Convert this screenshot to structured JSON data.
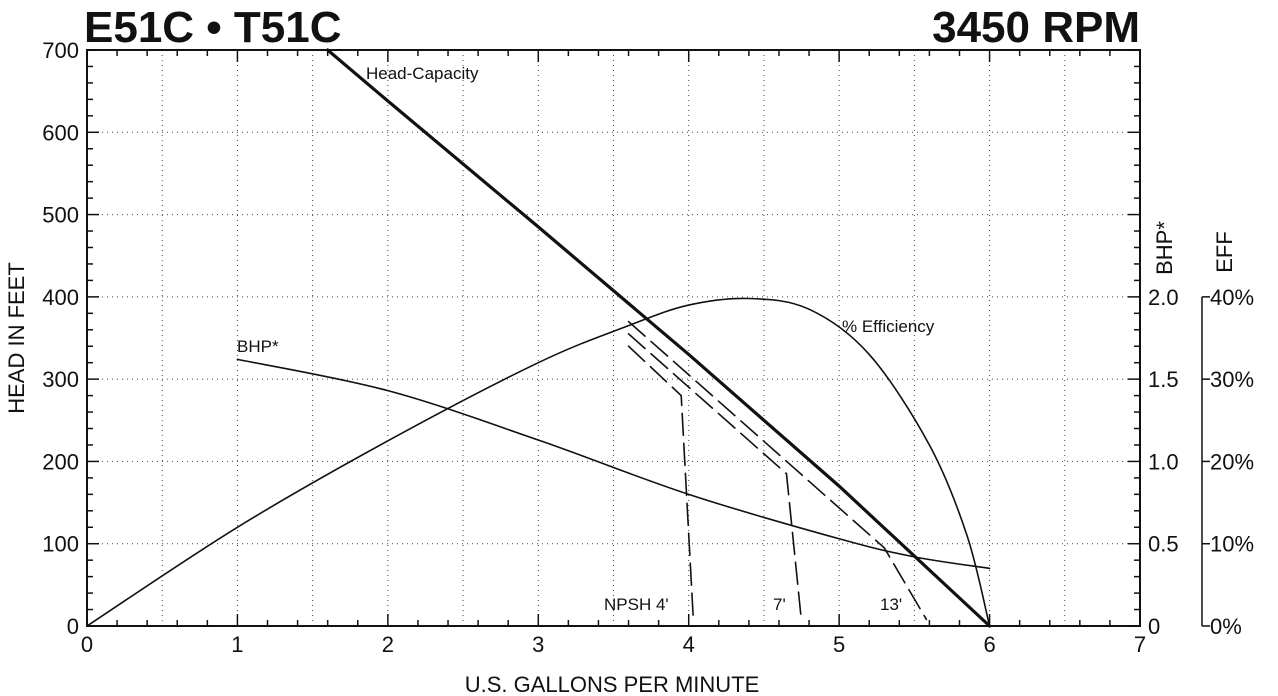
{
  "chart_data": {
    "type": "line",
    "title": "E51C • T51C",
    "subtitle": "3450 RPM",
    "xlabel": "U.S. GALLONS PER MINUTE",
    "ylabel": "HEAD IN FEET",
    "y2label": "BHP*",
    "y3label": "EFF",
    "xlim": [
      0,
      7
    ],
    "ylim": [
      0,
      700
    ],
    "y2lim": [
      0,
      2.0
    ],
    "y3lim": [
      0,
      40
    ],
    "grid": true,
    "xticks": [
      "0",
      "1",
      "2",
      "3",
      "4",
      "5",
      "6",
      "7"
    ],
    "yticks": [
      "0",
      "100",
      "200",
      "300",
      "400",
      "500",
      "600",
      "700"
    ],
    "y2ticks": [
      "0",
      "0.5",
      "1.0",
      "1.5",
      "2.0"
    ],
    "y3ticks": [
      "0%",
      "10%",
      "20%",
      "30%",
      "40%"
    ],
    "series": [
      {
        "name": "Head-Capacity",
        "axis": "head",
        "x": [
          1.6,
          2.0,
          3.0,
          4.0,
          5.0,
          6.0
        ],
        "y": [
          700,
          638,
          485,
          330,
          170,
          0
        ]
      },
      {
        "name": "% Efficiency",
        "axis": "eff",
        "x": [
          0,
          1.0,
          2.0,
          3.0,
          3.6,
          4.0,
          4.4,
          4.8,
          5.2,
          5.6,
          5.85,
          6.0
        ],
        "y": [
          0,
          12,
          22.5,
          32,
          36.5,
          39,
          39.8,
          38.5,
          33,
          22,
          11,
          0
        ]
      },
      {
        "name": "BHP*",
        "axis": "bhp",
        "x": [
          1.0,
          2.0,
          3.0,
          4.0,
          5.0,
          5.5,
          6.0
        ],
        "y": [
          1.62,
          1.43,
          1.13,
          0.8,
          0.53,
          0.42,
          0.35
        ]
      }
    ],
    "npsh": [
      {
        "name": "NPSH 4'",
        "x": [
          3.6,
          3.95,
          4.03
        ],
        "y": [
          340,
          280,
          10
        ]
      },
      {
        "name": "7'",
        "x": [
          3.6,
          4.65,
          4.75
        ],
        "y": [
          355,
          185,
          5
        ]
      },
      {
        "name": "13'",
        "x": [
          3.6,
          5.3,
          5.58
        ],
        "y": [
          370,
          95,
          8
        ]
      }
    ],
    "annotations": [
      "Head-Capacity",
      "% Efficiency",
      "BHP*",
      "NPSH 4'",
      "7'",
      "13'"
    ]
  }
}
